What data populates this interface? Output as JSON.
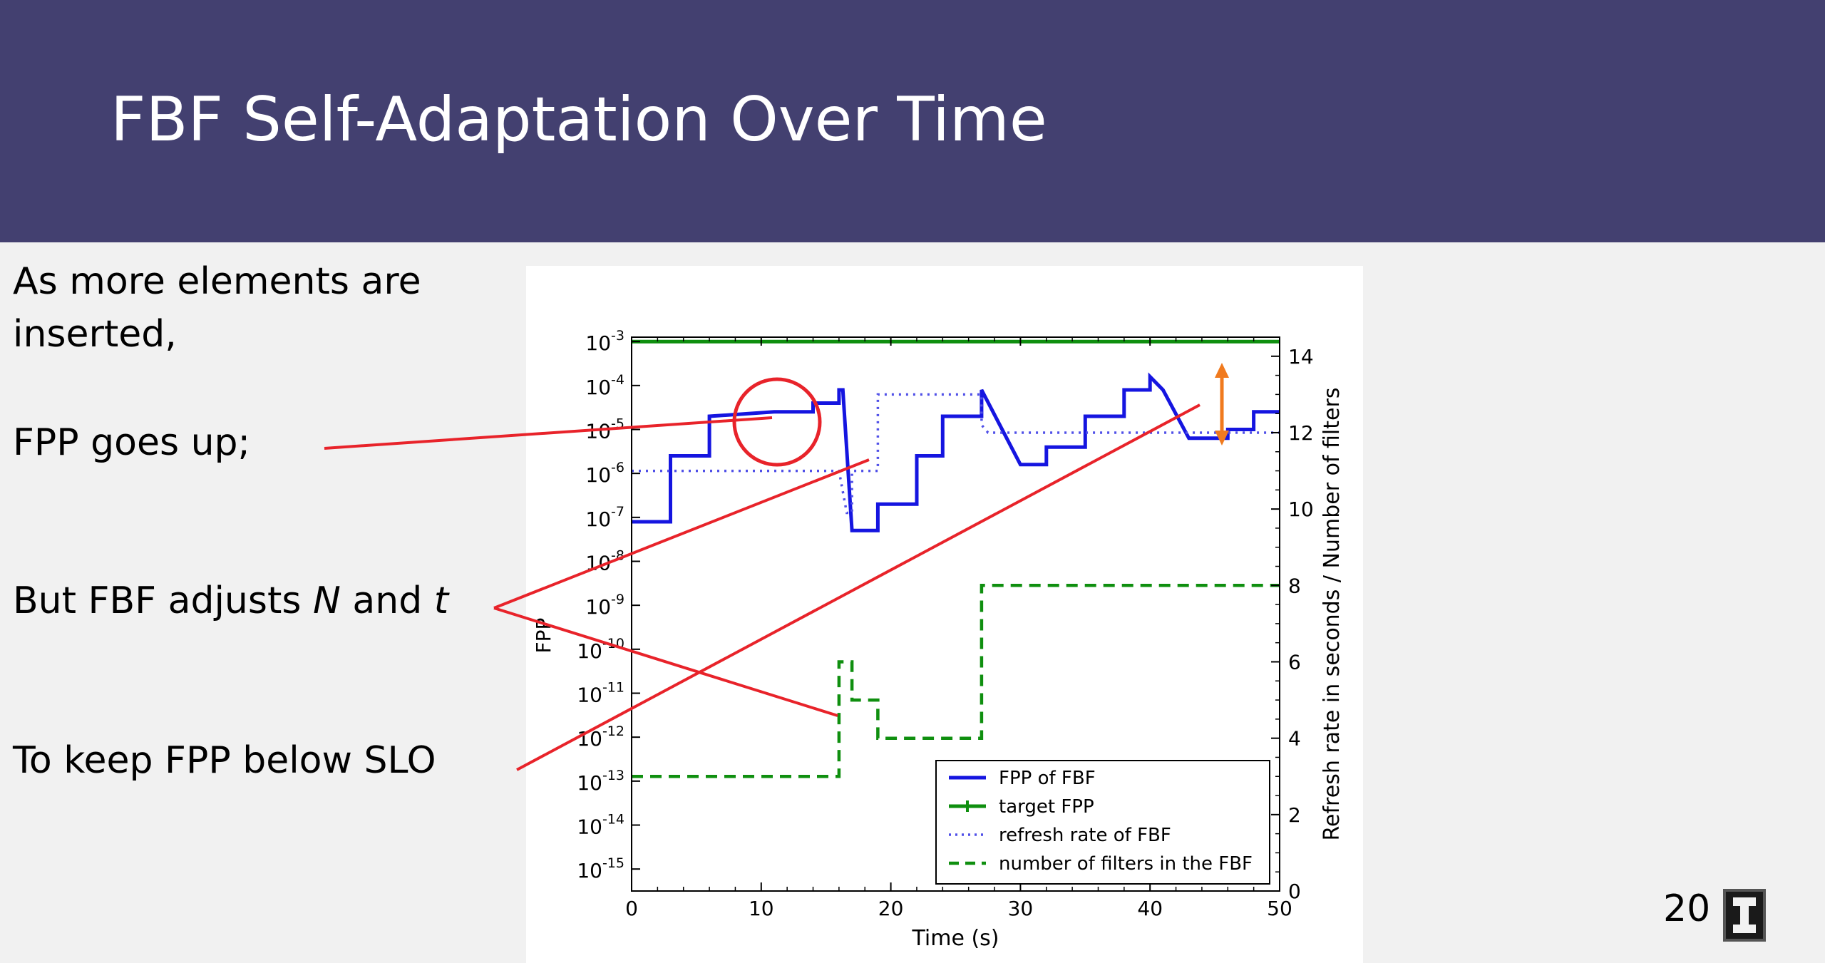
{
  "slide": {
    "title": "FBF Self-Adaptation Over Time",
    "bullets": {
      "b1_line1": "As more elements are",
      "b1_line2": "inserted,",
      "b2": "FPP goes up;",
      "b3_pre": "But FBF adjusts ",
      "b3_n": "N",
      "b3_mid": " and ",
      "b3_t": "t",
      "b4": "To keep FPP below SLO"
    },
    "page_number": "20",
    "annotation_color": "#e8232a",
    "arrow_color": "#f07a1e"
  },
  "chart_data": {
    "type": "line",
    "xlabel": "Time (s)",
    "ylabel": "FPP",
    "y2label": "Refresh rate in seconds / Number of filters",
    "xlim": [
      0,
      50
    ],
    "ylim_exp": [
      -15.5,
      -2.9
    ],
    "y2lim": [
      0,
      14.5
    ],
    "x_ticks": [
      0,
      10,
      20,
      30,
      40,
      50
    ],
    "y_ticks": [
      "10-3",
      "10-4",
      "10-5",
      "10-6",
      "10-7",
      "10-8",
      "10-9",
      "10-10",
      "10-11",
      "10-12",
      "10-13",
      "10-14",
      "10-15"
    ],
    "y2_ticks": [
      0,
      2,
      4,
      6,
      8,
      10,
      12,
      14
    ],
    "legend_position": "lower-right",
    "series": [
      {
        "name": "FPP of FBF",
        "axis": "left_log10",
        "color": "#1515e0",
        "style": "solid",
        "points": [
          [
            0,
            -7.1
          ],
          [
            3,
            -7.1
          ],
          [
            3,
            -5.6
          ],
          [
            6,
            -5.6
          ],
          [
            6,
            -4.7
          ],
          [
            11,
            -4.6
          ],
          [
            14,
            -4.6
          ],
          [
            14,
            -4.4
          ],
          [
            16,
            -4.4
          ],
          [
            16,
            -4.1
          ],
          [
            16.3,
            -4.1
          ],
          [
            17,
            -7.3
          ],
          [
            19,
            -7.3
          ],
          [
            19,
            -6.7
          ],
          [
            22,
            -6.7
          ],
          [
            22,
            -5.6
          ],
          [
            24,
            -5.6
          ],
          [
            24,
            -4.7
          ],
          [
            27,
            -4.7
          ],
          [
            27,
            -4.1
          ],
          [
            30,
            -5.8
          ],
          [
            32,
            -5.8
          ],
          [
            32,
            -5.4
          ],
          [
            35,
            -5.4
          ],
          [
            35,
            -4.7
          ],
          [
            38,
            -4.7
          ],
          [
            38,
            -4.1
          ],
          [
            40,
            -4.1
          ],
          [
            40,
            -3.8
          ],
          [
            41,
            -4.1
          ],
          [
            43,
            -5.2
          ],
          [
            46,
            -5.2
          ],
          [
            46,
            -5.0
          ],
          [
            48,
            -5.0
          ],
          [
            48,
            -4.6
          ],
          [
            50,
            -4.6
          ]
        ]
      },
      {
        "name": "target FPP",
        "axis": "left_log10",
        "color": "#0f8f0f",
        "style": "solid",
        "points": [
          [
            0,
            -3
          ],
          [
            50,
            -3
          ]
        ]
      },
      {
        "name": "refresh rate of FBF",
        "axis": "right",
        "color": "#5050e8",
        "style": "dotted",
        "points": [
          [
            0,
            11
          ],
          [
            15.5,
            11
          ],
          [
            16,
            11
          ],
          [
            16.6,
            9.9
          ],
          [
            17,
            9.9
          ],
          [
            17,
            11
          ],
          [
            19,
            11
          ],
          [
            19,
            13
          ],
          [
            27,
            13
          ],
          [
            27,
            12.2
          ],
          [
            27.5,
            12
          ],
          [
            50,
            12
          ]
        ]
      },
      {
        "name": "number of filters in the FBF",
        "axis": "right",
        "color": "#0f8f0f",
        "style": "dashed",
        "points": [
          [
            0,
            3
          ],
          [
            16,
            3
          ],
          [
            16,
            6
          ],
          [
            17,
            6
          ],
          [
            17,
            5
          ],
          [
            19,
            5
          ],
          [
            19,
            4
          ],
          [
            27,
            4
          ],
          [
            27,
            8
          ],
          [
            50,
            8
          ]
        ]
      }
    ]
  }
}
